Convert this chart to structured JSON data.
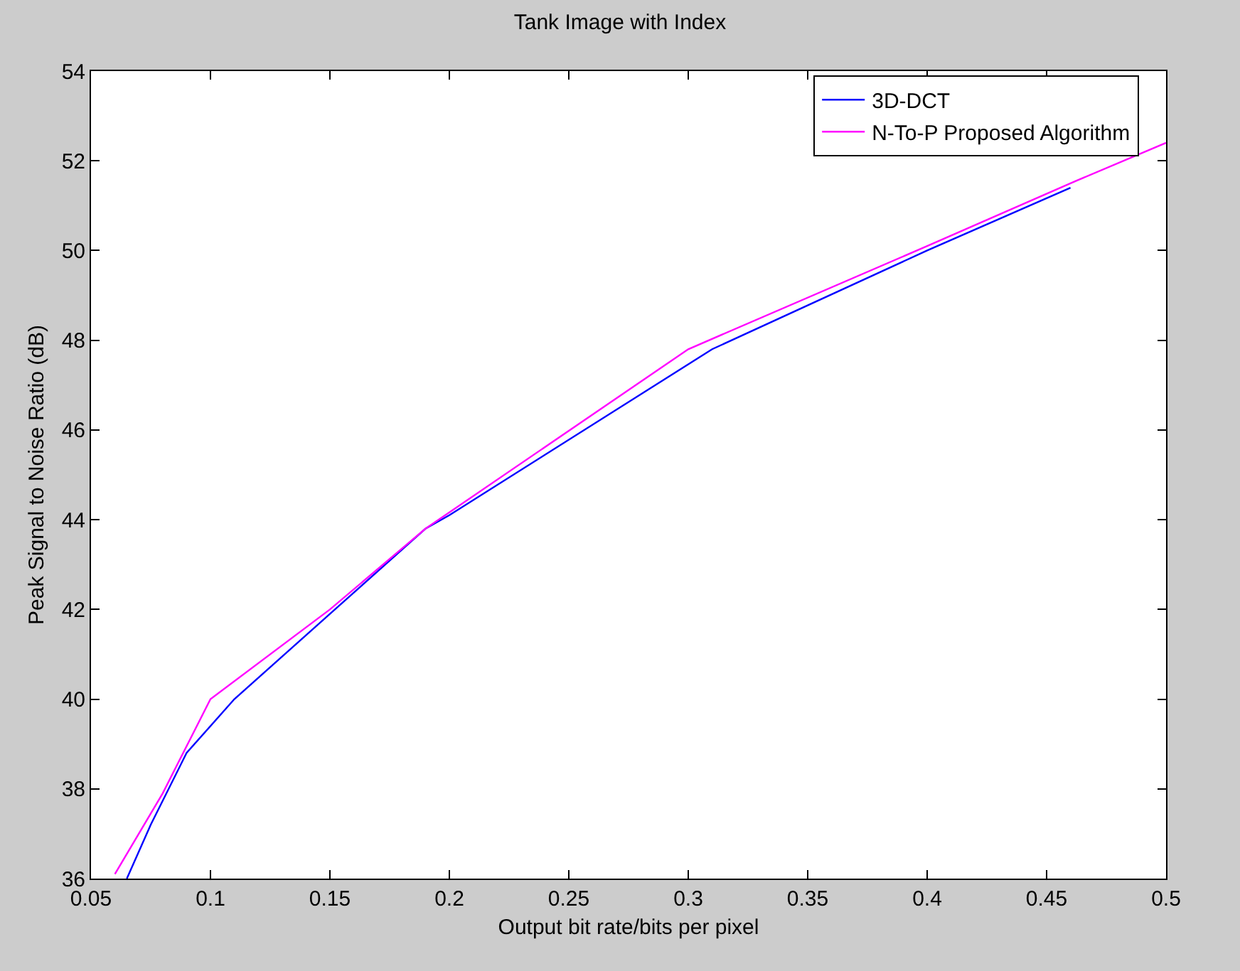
{
  "chart_data": {
    "type": "line",
    "title": "Tank Image with Index",
    "xlabel": "Output bit rate/bits per pixel",
    "ylabel": "Peak Signal to Noise Ratio (dB)",
    "xlim": [
      0.05,
      0.5
    ],
    "xticks": [
      0.05,
      0.1,
      0.15,
      0.2,
      0.25,
      0.3,
      0.35,
      0.4,
      0.45,
      0.5
    ],
    "ylim": [
      36,
      54
    ],
    "yticks": [
      36,
      38,
      40,
      42,
      44,
      46,
      48,
      50,
      52,
      54
    ],
    "grid": false,
    "legend": "top right",
    "marker": "none",
    "line_style": "solid",
    "series": [
      {
        "name": "3D-DCT",
        "color": "#0000ff",
        "x": [
          0.065,
          0.075,
          0.09,
          0.11,
          0.15,
          0.19,
          0.2,
          0.31,
          0.4,
          0.46
        ],
        "values": [
          36,
          37.2,
          38.8,
          40,
          41.9,
          43.8,
          44.1,
          47.8,
          50,
          51.4
        ]
      },
      {
        "name": "N-To-P Proposed Algorithm",
        "color": "#ff00ff",
        "x": [
          0.06,
          0.08,
          0.1,
          0.15,
          0.19,
          0.3,
          0.4,
          0.46,
          0.5
        ],
        "values": [
          36.1,
          37.9,
          40,
          42,
          43.8,
          47.8,
          50.1,
          51.5,
          52.4
        ]
      }
    ]
  }
}
